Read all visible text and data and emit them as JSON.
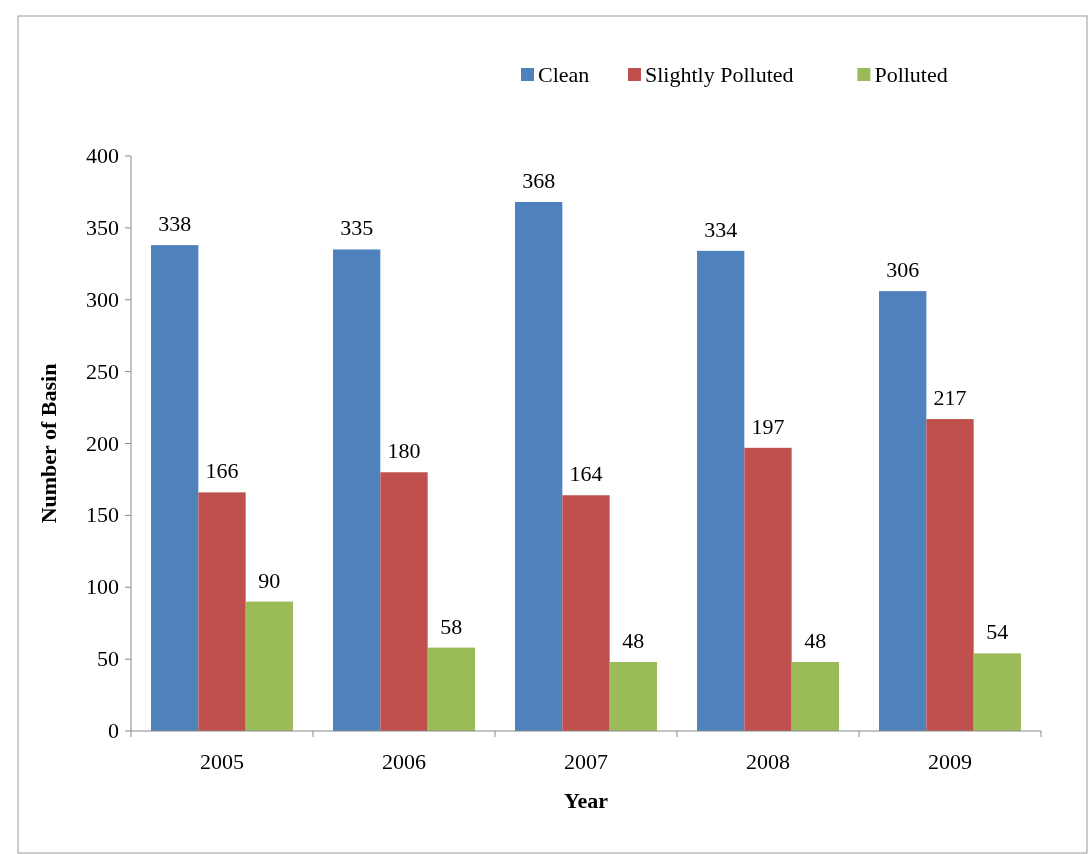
{
  "chart_data": {
    "type": "bar",
    "xlabel": "Year",
    "ylabel": "Number of Basin",
    "categories": [
      "2005",
      "2006",
      "2007",
      "2008",
      "2009"
    ],
    "series": [
      {
        "name": "Clean",
        "color": "#4f81bd",
        "values": [
          338,
          335,
          368,
          334,
          306
        ]
      },
      {
        "name": "Slightly Polluted",
        "color": "#c0504d",
        "values": [
          166,
          180,
          164,
          197,
          217
        ]
      },
      {
        "name": "Polluted",
        "color": "#9bbb59",
        "values": [
          90,
          58,
          48,
          48,
          54
        ]
      }
    ],
    "ylim": [
      0,
      400
    ],
    "yticks": [
      0,
      50,
      100,
      150,
      200,
      250,
      300,
      350,
      400
    ],
    "grid": false,
    "legend": "top right",
    "data_labels": true
  }
}
